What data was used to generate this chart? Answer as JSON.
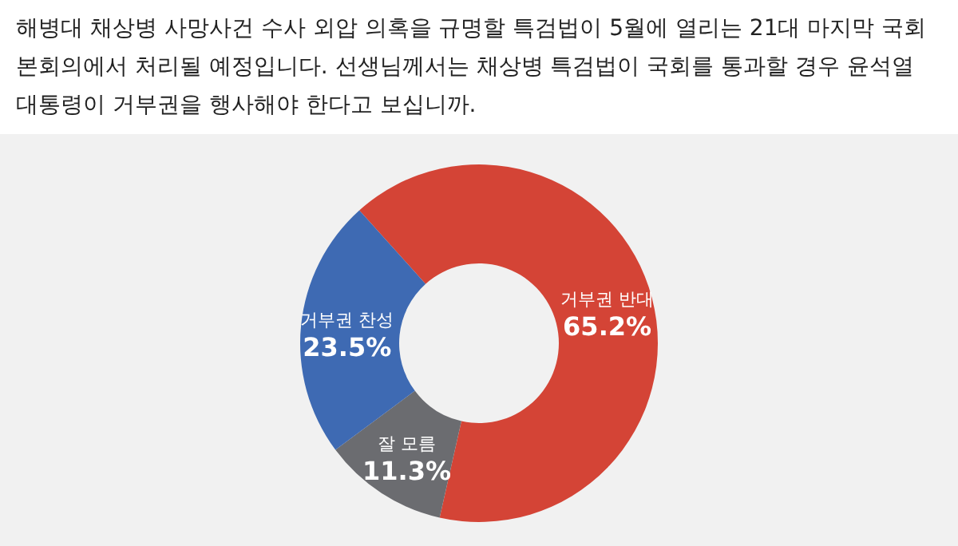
{
  "chart_data": {
    "type": "donut",
    "title": "해병대 채상병 사망사건 수사 외압 의혹을 규명할 특검법이 5월에 열리는 21대 마지막 국회 본회의에서 처리될 예정입니다. 선생님께서는 채상병 특검법이 국회를 통과할 경우 윤석열 대통령이 거부권을 행사해야 한다고 보십니까.",
    "categories": [
      "거부권 반대",
      "잘 모름",
      "거부권 찬성"
    ],
    "values": [
      65.2,
      11.3,
      23.5
    ],
    "colors": [
      "#d44436",
      "#6b6c70",
      "#3e6ab3"
    ],
    "value_labels": [
      "65.2%",
      "11.3%",
      "23.5%"
    ]
  }
}
